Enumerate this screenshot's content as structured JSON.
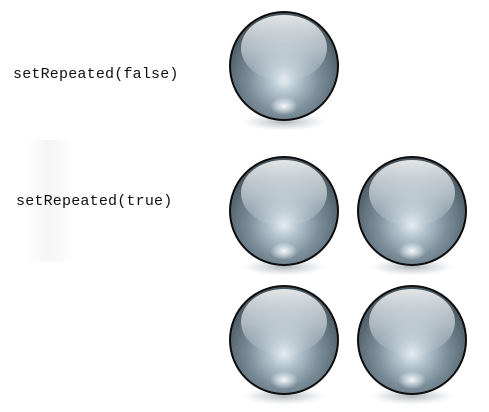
{
  "labels": {
    "set_repeated_false": "setRepeated(false)",
    "set_repeated_true": "setRepeated(true)"
  },
  "colors": {
    "orb_outline": "#0d0d0d",
    "orb_dark": "#55656f",
    "orb_mid": "#8b9ba5",
    "orb_light": "#d6e0e6",
    "shadow": "#9ea9af"
  },
  "icons": {
    "orb": "glass-sphere-icon"
  }
}
